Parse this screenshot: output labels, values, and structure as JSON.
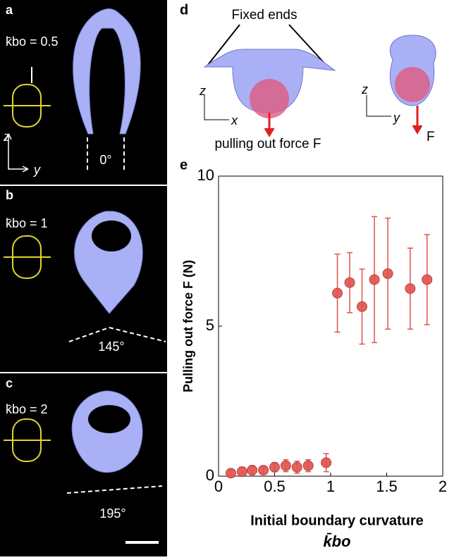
{
  "panels": {
    "a": {
      "letter": "a",
      "kbo": "k̄bo = 0.5",
      "angle": "0°",
      "z": "z",
      "y": "y"
    },
    "b": {
      "letter": "b",
      "kbo": "k̄bo = 1",
      "angle": "145°"
    },
    "c": {
      "letter": "c",
      "kbo": "k̄bo = 2",
      "angle": "195°"
    },
    "d": {
      "letter": "d",
      "fixed": "Fixed ends",
      "force": "pulling out force F",
      "F": "F",
      "z1": "z",
      "x": "x",
      "z2": "z",
      "y": "y"
    }
  },
  "chart_data": {
    "type": "scatter",
    "letter": "e",
    "x_label": "Initial boundary curvature",
    "x_label2": "k̄bo",
    "y_label": "Pulling out force F (N)",
    "color": "#e0524d",
    "x": [
      0.11,
      0.21,
      0.3,
      0.4,
      0.5,
      0.6,
      0.7,
      0.8,
      0.96,
      1.06,
      1.17,
      1.28,
      1.39,
      1.51,
      1.71,
      1.86
    ],
    "values": [
      0.1,
      0.15,
      0.2,
      0.2,
      0.3,
      0.35,
      0.3,
      0.35,
      0.45,
      6.1,
      6.45,
      5.65,
      6.55,
      6.75,
      6.25,
      6.55
    ],
    "errors": [
      0.1,
      0.15,
      0.15,
      0.1,
      0.15,
      0.2,
      0.2,
      0.2,
      0.3,
      1.3,
      1.0,
      1.25,
      2.1,
      1.85,
      1.35,
      1.5
    ],
    "xlim": [
      0,
      2
    ],
    "xticks": [
      0,
      0.5,
      1,
      1.5,
      2
    ],
    "ylim": [
      0,
      10
    ],
    "yticks": [
      0,
      5,
      10
    ]
  }
}
